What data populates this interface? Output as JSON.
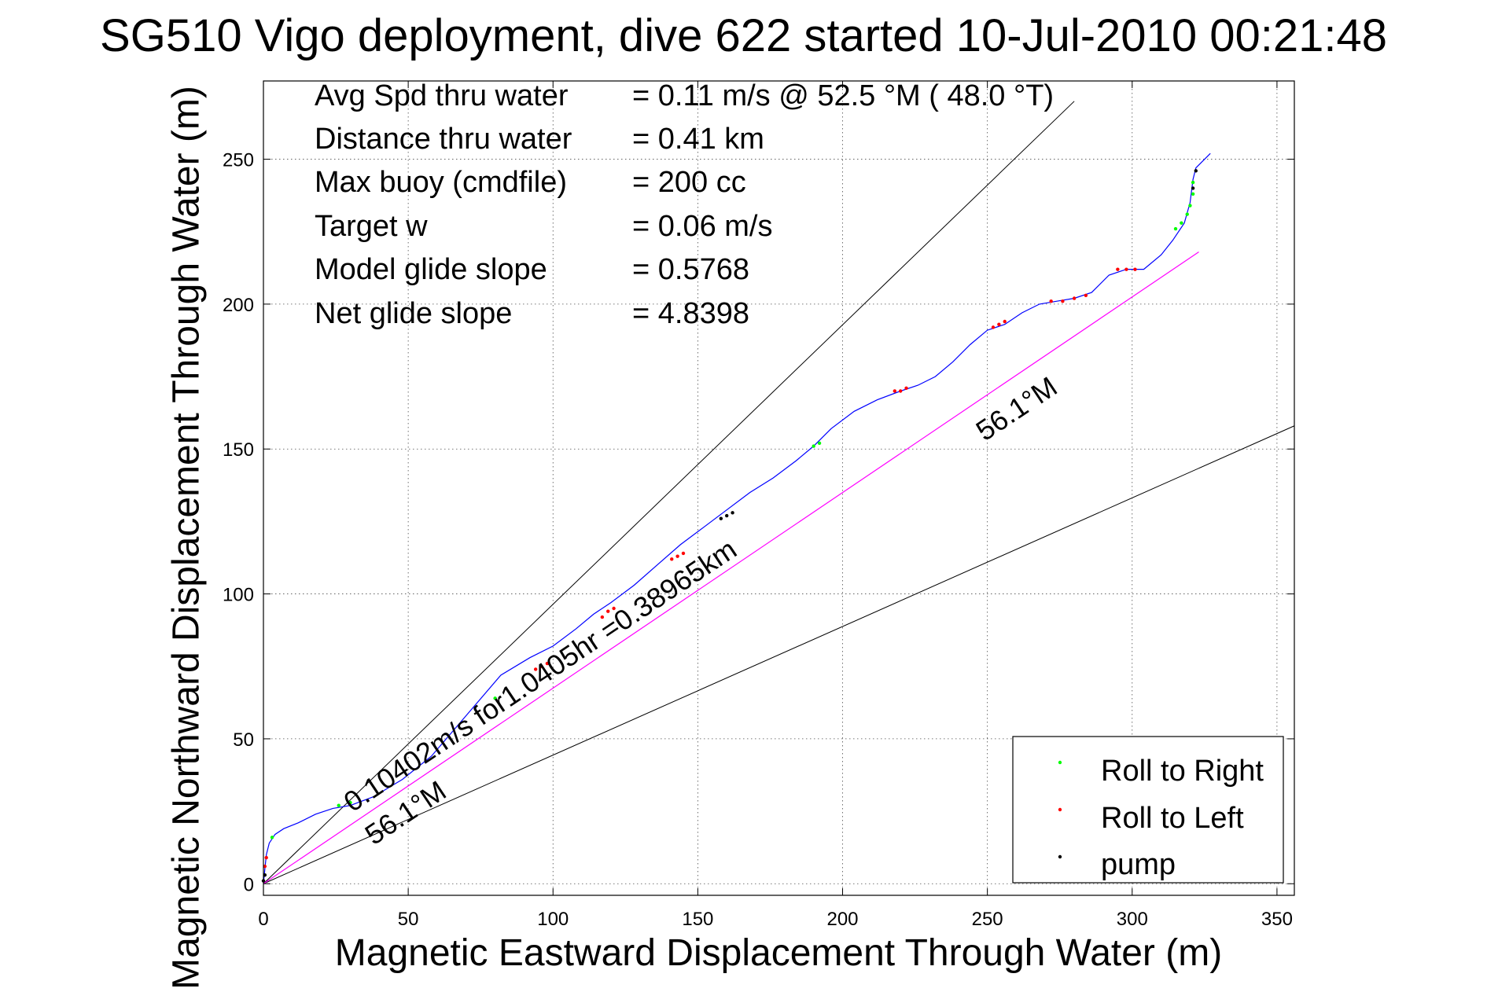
{
  "chart_data": {
    "type": "line",
    "title": "SG510 Vigo deployment, dive 622 started 10-Jul-2010 00:21:48",
    "xlabel": "Magnetic Eastward Displacement Through Water (m)",
    "ylabel": "Magnetic Northward Displacement Through Water (m)",
    "xlim": [
      0,
      356
    ],
    "ylim": [
      -4,
      277
    ],
    "xticks": [
      0,
      50,
      100,
      150,
      200,
      250,
      300,
      350
    ],
    "yticks": [
      0,
      50,
      100,
      150,
      200,
      250
    ],
    "grid": true,
    "legend_position": "bottom-right",
    "stats": [
      {
        "label": "Avg Spd thru water",
        "value": "=  0.11 m/s @  52.5 °M ( 48.0 °T)"
      },
      {
        "label": "Distance thru water",
        "value": "=  0.41 km"
      },
      {
        "label": "Max buoy (cmdfile)",
        "value": "= 200 cc"
      },
      {
        "label": "Target w",
        "value": "= 0.06 m/s"
      },
      {
        "label": "Model glide slope",
        "value": "= 0.5768"
      },
      {
        "label": "Net glide slope",
        "value": "= 4.8398"
      }
    ],
    "annotations": {
      "vector_label": "0.10402m/s for1.0405hr =0.38965km",
      "heading_label_top": "56.1°M",
      "heading_label_bottom": "56.1°M"
    },
    "series": [
      {
        "name": "track",
        "color": "#0000ff",
        "x": [
          0,
          0.5,
          1,
          2,
          4,
          7,
          12,
          18,
          24,
          30,
          38,
          48,
          58,
          70,
          82,
          92,
          100,
          108,
          114,
          120,
          128,
          136,
          144,
          152,
          160,
          168,
          176,
          184,
          190,
          196,
          204,
          212,
          220,
          226,
          232,
          238,
          244,
          250,
          256,
          262,
          268,
          274,
          280,
          286,
          292,
          298,
          304,
          310,
          314,
          318,
          320,
          321,
          322,
          324,
          327
        ],
        "y": [
          0,
          5,
          10,
          14,
          17,
          19,
          21,
          24,
          26,
          27,
          30,
          36,
          44,
          58,
          72,
          78,
          82,
          88,
          93,
          97,
          103,
          110,
          117,
          123,
          129,
          135,
          140,
          146,
          151,
          157,
          163,
          167,
          170,
          172,
          175,
          180,
          186,
          191,
          193,
          197,
          200,
          201,
          202,
          204,
          210,
          212,
          212,
          217,
          222,
          228,
          235,
          243,
          247,
          249,
          252
        ]
      },
      {
        "name": "vector",
        "color": "#ff00ff",
        "x": [
          0,
          323
        ],
        "y": [
          0,
          218
        ]
      }
    ],
    "reference_lines": [
      {
        "x": [
          0,
          280
        ],
        "y": [
          0,
          270
        ]
      },
      {
        "x": [
          0,
          356
        ],
        "y": [
          0,
          158
        ]
      }
    ],
    "markers": [
      {
        "name": "Roll to Right",
        "color": "#00ff00",
        "points": [
          [
            3,
            16
          ],
          [
            26,
            27
          ],
          [
            30,
            28
          ],
          [
            80,
            64
          ],
          [
            190,
            151
          ],
          [
            192,
            152
          ],
          [
            315,
            226
          ],
          [
            317,
            228
          ],
          [
            319,
            231
          ],
          [
            320,
            234
          ],
          [
            321,
            238
          ],
          [
            321,
            242
          ]
        ]
      },
      {
        "name": "Roll to Left",
        "color": "#ff0000",
        "points": [
          [
            0.5,
            6
          ],
          [
            1,
            9
          ],
          [
            94,
            74
          ],
          [
            96,
            75
          ],
          [
            98,
            76
          ],
          [
            117,
            92
          ],
          [
            119,
            94
          ],
          [
            121,
            95
          ],
          [
            141,
            112
          ],
          [
            143,
            113
          ],
          [
            145,
            114
          ],
          [
            218,
            170
          ],
          [
            220,
            170
          ],
          [
            222,
            171
          ],
          [
            252,
            192
          ],
          [
            254,
            193
          ],
          [
            256,
            194
          ],
          [
            272,
            201
          ],
          [
            276,
            201
          ],
          [
            280,
            202
          ],
          [
            284,
            203
          ],
          [
            295,
            212
          ],
          [
            298,
            212
          ],
          [
            301,
            212
          ]
        ]
      },
      {
        "name": "pump",
        "color": "#000000",
        "points": [
          [
            0,
            1
          ],
          [
            0.5,
            3
          ],
          [
            158,
            126
          ],
          [
            160,
            127
          ],
          [
            162,
            128
          ],
          [
            321,
            240
          ],
          [
            322,
            246
          ]
        ]
      }
    ]
  }
}
